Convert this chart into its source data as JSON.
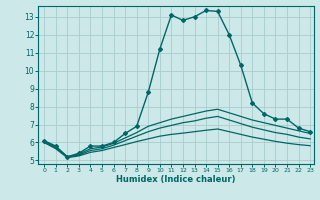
{
  "title": "",
  "xlabel": "Humidex (Indice chaleur)",
  "bg_color": "#cce8e8",
  "grid_color": "#aacccc",
  "line_color": "#006666",
  "xlim": [
    -0.5,
    23.3
  ],
  "ylim": [
    4.8,
    13.6
  ],
  "yticks": [
    5,
    6,
    7,
    8,
    9,
    10,
    11,
    12,
    13
  ],
  "xticks": [
    0,
    1,
    2,
    3,
    4,
    5,
    6,
    7,
    8,
    9,
    10,
    11,
    12,
    13,
    14,
    15,
    16,
    17,
    18,
    19,
    20,
    21,
    22,
    23
  ],
  "series": [
    {
      "x": [
        0,
        1,
        2,
        3,
        4,
        5,
        6,
        7,
        8,
        9,
        10,
        11,
        12,
        13,
        14,
        15,
        16,
        17,
        18,
        19,
        20,
        21,
        22,
        23
      ],
      "y": [
        6.1,
        5.8,
        5.2,
        5.4,
        5.8,
        5.8,
        6.0,
        6.5,
        6.9,
        8.8,
        11.2,
        13.1,
        12.8,
        13.0,
        13.35,
        13.3,
        12.0,
        10.3,
        8.2,
        7.6,
        7.3,
        7.3,
        6.8,
        6.6
      ],
      "marker": "D",
      "markersize": 2.0,
      "linewidth": 1.0
    },
    {
      "x": [
        0,
        1,
        2,
        3,
        4,
        5,
        6,
        7,
        8,
        9,
        10,
        11,
        12,
        13,
        14,
        15,
        16,
        17,
        18,
        19,
        20,
        21,
        22,
        23
      ],
      "y": [
        6.05,
        5.75,
        5.2,
        5.35,
        5.65,
        5.75,
        5.95,
        6.25,
        6.55,
        6.9,
        7.1,
        7.3,
        7.45,
        7.6,
        7.75,
        7.85,
        7.65,
        7.45,
        7.25,
        7.1,
        6.95,
        6.8,
        6.65,
        6.5
      ],
      "marker": "",
      "markersize": 0,
      "linewidth": 0.9
    },
    {
      "x": [
        0,
        1,
        2,
        3,
        4,
        5,
        6,
        7,
        8,
        9,
        10,
        11,
        12,
        13,
        14,
        15,
        16,
        17,
        18,
        19,
        20,
        21,
        22,
        23
      ],
      "y": [
        6.0,
        5.7,
        5.2,
        5.3,
        5.55,
        5.65,
        5.85,
        6.1,
        6.35,
        6.6,
        6.8,
        6.95,
        7.1,
        7.2,
        7.35,
        7.45,
        7.25,
        7.05,
        6.85,
        6.7,
        6.55,
        6.45,
        6.3,
        6.2
      ],
      "marker": "",
      "markersize": 0,
      "linewidth": 0.9
    },
    {
      "x": [
        0,
        1,
        2,
        3,
        4,
        5,
        6,
        7,
        8,
        9,
        10,
        11,
        12,
        13,
        14,
        15,
        16,
        17,
        18,
        19,
        20,
        21,
        22,
        23
      ],
      "y": [
        6.0,
        5.65,
        5.15,
        5.25,
        5.45,
        5.55,
        5.72,
        5.88,
        6.05,
        6.2,
        6.35,
        6.45,
        6.52,
        6.6,
        6.68,
        6.75,
        6.6,
        6.45,
        6.3,
        6.18,
        6.06,
        5.96,
        5.88,
        5.82
      ],
      "marker": "",
      "markersize": 0,
      "linewidth": 0.9
    }
  ]
}
